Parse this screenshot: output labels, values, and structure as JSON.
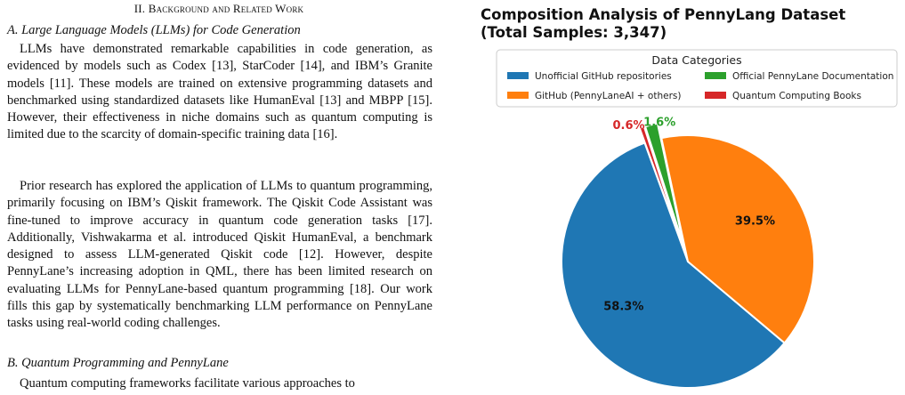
{
  "paper": {
    "section_num": "II.",
    "section_title": "Background and Related Work",
    "subsection_a": "A. Large Language Models (LLMs) for Code Generation",
    "para1": "LLMs have demonstrated remarkable capabilities in code generation, as evidenced by models such as Codex [13], StarCoder [14], and IBM’s Granite models [11]. These models are trained on extensive programming datasets and benchmarked using standardized datasets like HumanEval [13] and MBPP [15]. However, their effectiveness in niche domains such as quantum computing is limited due to the scarcity of domain-specific training data [16].",
    "para2": "Prior research has explored the application of LLMs to quantum programming, primarily focusing on IBM’s Qiskit framework. The Qiskit Code Assistant was fine-tuned to improve accuracy in quantum code generation tasks [17]. Additionally, Vishwakarma et al. introduced Qiskit HumanEval, a benchmark designed to assess LLM-generated Qiskit code [12]. However, despite PennyLane’s increasing adoption in QML, there has been limited research on evaluating LLMs for PennyLane-based quantum programming [18]. Our work fills this gap by systematically benchmarking LLM performance on PennyLane tasks using real-world coding challenges.",
    "subsection_b": "B. Quantum Programming and PennyLane",
    "para3": "Quantum computing frameworks facilitate various approaches to"
  },
  "chart_data": {
    "type": "pie",
    "title_line1": "Composition Analysis of PennyLang Dataset",
    "title_line2": "(Total Samples: 3,347)",
    "legend_title": "Data Categories",
    "legend_position": "top",
    "slices": [
      {
        "label": "Unofficial GitHub repositories",
        "percent": 58.3,
        "label_text": "58.3%",
        "color": "#1f77b4",
        "explode": false
      },
      {
        "label": "GitHub (PennyLaneAI + others)",
        "percent": 39.5,
        "label_text": "39.5%",
        "color": "#ff7f0e",
        "explode": false
      },
      {
        "label": "Official PennyLane Documentation",
        "percent": 1.6,
        "label_text": "1.6%",
        "color": "#2ca02c",
        "explode": true
      },
      {
        "label": "Quantum Computing Books",
        "percent": 0.6,
        "label_text": "0.6%",
        "color": "#d62728",
        "explode": true
      }
    ]
  }
}
